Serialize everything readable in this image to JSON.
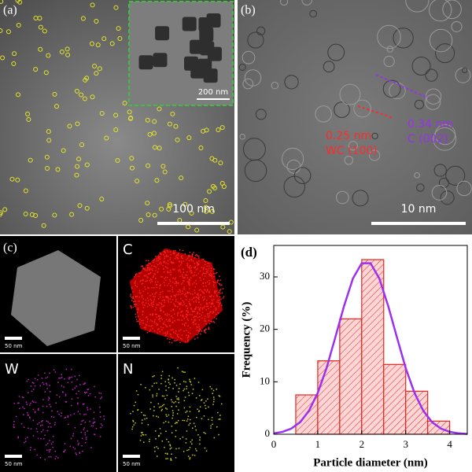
{
  "panels": {
    "a": {
      "label": "(a)",
      "inset_scale": "200 nm",
      "scale": "100 nm"
    },
    "b": {
      "label": "(b)",
      "d1": "0.25 nm",
      "plane1": "WC (100)",
      "d2": "0.34 nm",
      "plane2": "C (002)",
      "scale": "10 nm"
    },
    "c": {
      "label": "(c)",
      "maps": [
        "C",
        "W",
        "N"
      ],
      "scales": [
        "50 nm",
        "50 nm",
        "50 nm",
        "50 nm"
      ]
    },
    "d": {
      "label": "(d)"
    }
  },
  "chart_data": {
    "type": "histogram",
    "bins": [
      0.5,
      1,
      1.5,
      2,
      2.5,
      3,
      3.5,
      4
    ],
    "counts": [
      7.5,
      14,
      22,
      33.3,
      13.3,
      8.2,
      2.5
    ],
    "color": "#ffd6d6",
    "edge_color": "#e8231e",
    "fit": {
      "color": "#9b30f0",
      "x": [
        0,
        0.2,
        0.4,
        0.6,
        0.8,
        1,
        1.2,
        1.4,
        1.6,
        1.8,
        2,
        2.2,
        2.4,
        2.6,
        2.8,
        3,
        3.2,
        3.4,
        3.6,
        3.8,
        4,
        4.2,
        4.4
      ],
      "values": [
        0.18,
        0.46,
        1.08,
        2.3,
        4.47,
        7.88,
        12.6,
        18.5,
        24.5,
        29.7,
        32.6,
        32.6,
        29.7,
        24.5,
        18.5,
        12.6,
        7.88,
        4.47,
        2.3,
        1.08,
        0.46,
        0.18,
        0.06
      ]
    },
    "xlim": [
      0,
      4.4
    ],
    "ylim": [
      0,
      36
    ],
    "xticks": [
      0,
      1,
      2,
      3,
      4
    ],
    "yticks": [
      0,
      10,
      20,
      30
    ],
    "xlabel": "Particle diameter (nm)",
    "ylabel": "Frequency (%)"
  }
}
